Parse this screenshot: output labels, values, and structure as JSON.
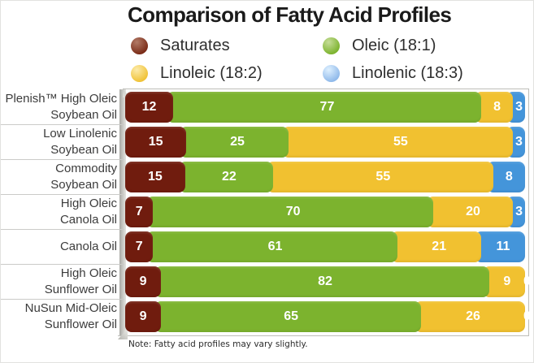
{
  "title": "Comparison of Fatty Acid Profiles",
  "legend": {
    "items": [
      {
        "key": "saturates",
        "label": "Saturates",
        "color": "#701c0e"
      },
      {
        "key": "oleic",
        "label": "Oleic (18:1)",
        "color": "#7cb32e"
      },
      {
        "key": "linoleic",
        "label": "Linoleic (18:2)",
        "color": "#f1c130"
      },
      {
        "key": "linolenic",
        "label": "Linolenic (18:3)",
        "color": "#4495da"
      }
    ]
  },
  "note": "Note: Fatty acid profiles may vary slightly.",
  "chart_data": {
    "type": "bar",
    "orientation": "horizontal",
    "stacked": true,
    "value_unit": "percent",
    "title": "Comparison of Fatty Acid Profiles",
    "xlim": [
      0,
      100
    ],
    "grid": false,
    "legend_position": "top",
    "series_names": [
      "Saturates",
      "Oleic (18:1)",
      "Linoleic (18:2)",
      "Linolenic (18:3)"
    ],
    "series_keys": [
      "saturates",
      "oleic",
      "linoleic",
      "linolenic"
    ],
    "series_colors": [
      "#701c0e",
      "#7cb32e",
      "#f1c130",
      "#4495da"
    ],
    "rows": [
      {
        "label_lines": [
          "Plenish™ High Oleic",
          "Soybean Oil"
        ],
        "values": [
          12,
          77,
          8,
          3
        ]
      },
      {
        "label_lines": [
          "Low Linolenic",
          "Soybean Oil"
        ],
        "values": [
          15,
          25,
          55,
          3
        ]
      },
      {
        "label_lines": [
          "Commodity",
          "Soybean Oil"
        ],
        "values": [
          15,
          22,
          55,
          8
        ]
      },
      {
        "label_lines": [
          "High Oleic",
          "Canola Oil"
        ],
        "values": [
          7,
          70,
          20,
          3
        ]
      },
      {
        "label_lines": [
          "Canola Oil"
        ],
        "values": [
          7,
          61,
          21,
          11
        ]
      },
      {
        "label_lines": [
          "High Oleic",
          "Sunflower Oil"
        ],
        "values": [
          9,
          82,
          9,
          0
        ]
      },
      {
        "label_lines": [
          "NuSun Mid-Oleic",
          "Sunflower Oil"
        ],
        "values": [
          9,
          65,
          26,
          0
        ]
      }
    ]
  }
}
